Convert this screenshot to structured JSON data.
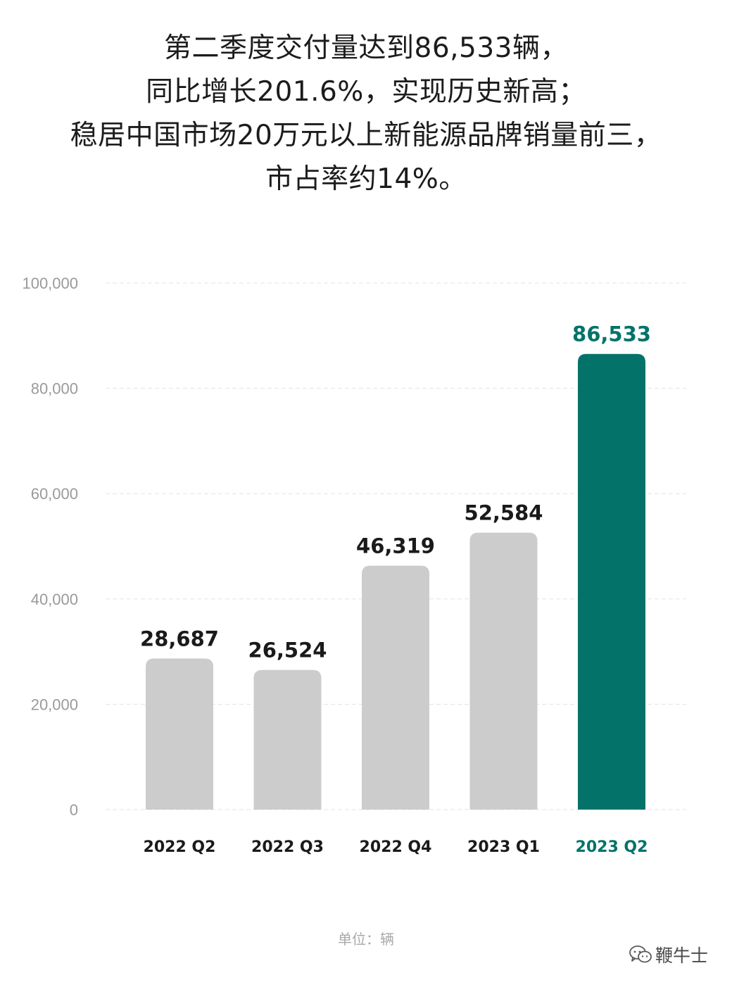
{
  "headline": {
    "lines": [
      "第二季度交付量达到86,533辆，",
      "同比增长201.6%，实现历史新高；",
      "稳居中国市场20万元以上新能源品牌销量前三，",
      "市占率约14%。"
    ]
  },
  "chart_data": {
    "type": "bar",
    "categories": [
      "2022 Q2",
      "2022 Q3",
      "2022 Q4",
      "2023 Q1",
      "2023 Q2"
    ],
    "values": [
      28687,
      26524,
      46319,
      52584,
      86533
    ],
    "value_labels": [
      "28,687",
      "26,524",
      "46,319",
      "52,584",
      "86,533"
    ],
    "ylim": [
      0,
      100000
    ],
    "yticks": [
      0,
      20000,
      40000,
      60000,
      80000,
      100000
    ],
    "ytick_labels": [
      "0",
      "20,000",
      "40,000",
      "60,000",
      "80,000",
      "100,000"
    ],
    "grid": true,
    "colors": {
      "default_bar": "#cccccc",
      "highlight_bar": "#03736a",
      "default_label": "#1a1a1a",
      "highlight_label": "#03736a"
    },
    "highlight_index": 4
  },
  "unit_label": "单位：辆",
  "watermark": {
    "icon": "wechat-icon",
    "text": "鞭牛士"
  }
}
